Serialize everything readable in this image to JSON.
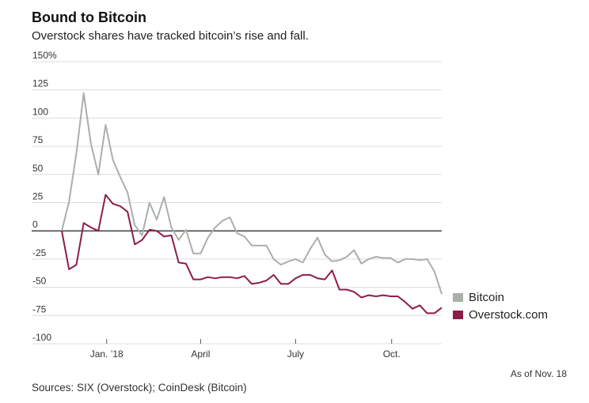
{
  "title": "Bound to Bitcoin",
  "subtitle": "Overstock shares have tracked bitcoin’s rise and fall.",
  "note": "As of Nov. 18",
  "source": "Sources: SIX (Overstock); CoinDesk (Bitcoin)",
  "chart_data": {
    "type": "line",
    "title": "Bound to Bitcoin",
    "xlabel": "",
    "ylabel": "",
    "ylim": [
      -100,
      150
    ],
    "yticks": [
      150,
      125,
      100,
      75,
      50,
      25,
      0,
      -25,
      -50,
      -75,
      -100
    ],
    "ytick_labels": [
      "150%",
      "125",
      "100",
      "75",
      "50",
      "25",
      "0",
      "-25",
      "-50",
      "-75",
      "-100"
    ],
    "xlim": [
      "2017-11-19",
      "2018-11-18"
    ],
    "xticks": [
      {
        "label": "Jan. ’18",
        "date": "2018-01-01"
      },
      {
        "label": "April",
        "date": "2018-04-01"
      },
      {
        "label": "July",
        "date": "2018-07-01"
      },
      {
        "label": "Oct.",
        "date": "2018-10-01"
      }
    ],
    "grid": true,
    "legend_position": "right",
    "series": [
      {
        "name": "Bitcoin",
        "color": "#a9b0a8",
        "points": [
          [
            "2017-11-19",
            0
          ],
          [
            "2017-11-26",
            26
          ],
          [
            "2017-12-03",
            69
          ],
          [
            "2017-12-10",
            122
          ],
          [
            "2017-12-17",
            77
          ],
          [
            "2017-12-24",
            50
          ],
          [
            "2017-12-31",
            94
          ],
          [
            "2018-01-07",
            63
          ],
          [
            "2018-01-14",
            48
          ],
          [
            "2018-01-21",
            34
          ],
          [
            "2018-01-28",
            5
          ],
          [
            "2018-02-04",
            -4
          ],
          [
            "2018-02-11",
            25
          ],
          [
            "2018-02-18",
            10
          ],
          [
            "2018-02-25",
            30
          ],
          [
            "2018-03-04",
            3
          ],
          [
            "2018-03-11",
            -8
          ],
          [
            "2018-03-18",
            1
          ],
          [
            "2018-03-25",
            -20
          ],
          [
            "2018-04-01",
            -20
          ],
          [
            "2018-04-08",
            -6
          ],
          [
            "2018-04-15",
            3
          ],
          [
            "2018-04-22",
            9
          ],
          [
            "2018-04-29",
            12
          ],
          [
            "2018-05-06",
            -2
          ],
          [
            "2018-05-13",
            -5
          ],
          [
            "2018-05-20",
            -13
          ],
          [
            "2018-05-27",
            -13
          ],
          [
            "2018-06-03",
            -13
          ],
          [
            "2018-06-10",
            -25
          ],
          [
            "2018-06-17",
            -30
          ],
          [
            "2018-06-24",
            -27
          ],
          [
            "2018-07-01",
            -25
          ],
          [
            "2018-07-08",
            -28
          ],
          [
            "2018-07-15",
            -16
          ],
          [
            "2018-07-22",
            -6
          ],
          [
            "2018-07-29",
            -21
          ],
          [
            "2018-08-05",
            -27
          ],
          [
            "2018-08-12",
            -26
          ],
          [
            "2018-08-19",
            -23
          ],
          [
            "2018-08-26",
            -17
          ],
          [
            "2018-09-02",
            -29
          ],
          [
            "2018-09-09",
            -25
          ],
          [
            "2018-09-16",
            -23
          ],
          [
            "2018-09-23",
            -24
          ],
          [
            "2018-09-30",
            -24
          ],
          [
            "2018-10-07",
            -28
          ],
          [
            "2018-10-14",
            -25
          ],
          [
            "2018-10-21",
            -25
          ],
          [
            "2018-10-28",
            -26
          ],
          [
            "2018-11-04",
            -25
          ],
          [
            "2018-11-11",
            -36
          ],
          [
            "2018-11-18",
            -56
          ]
        ]
      },
      {
        "name": "Overstock.com",
        "color": "#8c1d4b",
        "points": [
          [
            "2017-11-19",
            0
          ],
          [
            "2017-11-26",
            -34
          ],
          [
            "2017-12-03",
            -30
          ],
          [
            "2017-12-10",
            7
          ],
          [
            "2017-12-17",
            3
          ],
          [
            "2017-12-24",
            0
          ],
          [
            "2017-12-31",
            32
          ],
          [
            "2018-01-07",
            24
          ],
          [
            "2018-01-14",
            22
          ],
          [
            "2018-01-21",
            17
          ],
          [
            "2018-01-28",
            -12
          ],
          [
            "2018-02-04",
            -8
          ],
          [
            "2018-02-11",
            1
          ],
          [
            "2018-02-18",
            0
          ],
          [
            "2018-02-25",
            -5
          ],
          [
            "2018-03-04",
            -4
          ],
          [
            "2018-03-11",
            -28
          ],
          [
            "2018-03-18",
            -29
          ],
          [
            "2018-03-25",
            -43
          ],
          [
            "2018-04-01",
            -43
          ],
          [
            "2018-04-08",
            -41
          ],
          [
            "2018-04-15",
            -42
          ],
          [
            "2018-04-22",
            -41
          ],
          [
            "2018-04-29",
            -41
          ],
          [
            "2018-05-06",
            -42
          ],
          [
            "2018-05-13",
            -40
          ],
          [
            "2018-05-20",
            -47
          ],
          [
            "2018-05-27",
            -46
          ],
          [
            "2018-06-03",
            -44
          ],
          [
            "2018-06-10",
            -39
          ],
          [
            "2018-06-17",
            -47
          ],
          [
            "2018-06-24",
            -47
          ],
          [
            "2018-07-01",
            -42
          ],
          [
            "2018-07-08",
            -39
          ],
          [
            "2018-07-15",
            -39
          ],
          [
            "2018-07-22",
            -42
          ],
          [
            "2018-07-29",
            -43
          ],
          [
            "2018-08-05",
            -35
          ],
          [
            "2018-08-12",
            -52
          ],
          [
            "2018-08-19",
            -52
          ],
          [
            "2018-08-26",
            -54
          ],
          [
            "2018-09-02",
            -59
          ],
          [
            "2018-09-09",
            -57
          ],
          [
            "2018-09-16",
            -58
          ],
          [
            "2018-09-23",
            -57
          ],
          [
            "2018-09-30",
            -58
          ],
          [
            "2018-10-07",
            -58
          ],
          [
            "2018-10-14",
            -63
          ],
          [
            "2018-10-21",
            -69
          ],
          [
            "2018-10-28",
            -66
          ],
          [
            "2018-11-04",
            -73
          ],
          [
            "2018-11-11",
            -73
          ],
          [
            "2018-11-18",
            -68
          ]
        ]
      }
    ]
  }
}
